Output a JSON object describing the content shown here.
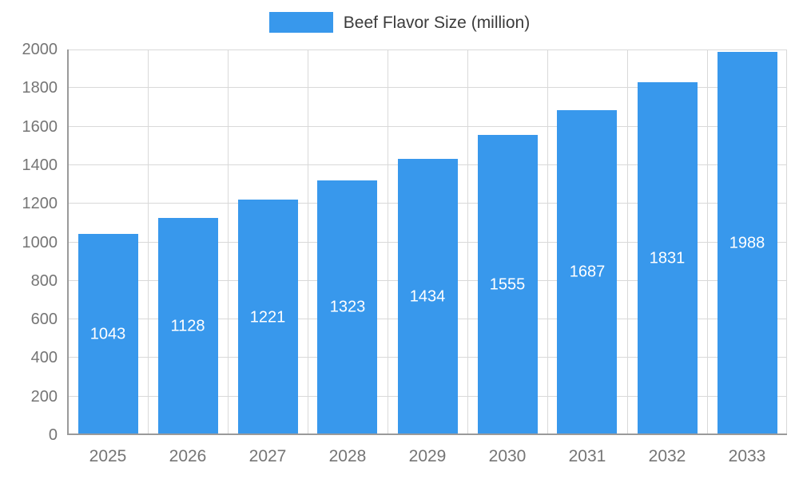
{
  "chart_data": {
    "type": "bar",
    "title": "Beef Flavor Size (million)",
    "categories": [
      "2025",
      "2026",
      "2027",
      "2028",
      "2029",
      "2030",
      "2031",
      "2032",
      "2033"
    ],
    "values": [
      1043,
      1128,
      1221,
      1323,
      1434,
      1555,
      1687,
      1831,
      1988
    ],
    "xlabel": "",
    "ylabel": "",
    "ylim": [
      0,
      2000
    ],
    "yticks": [
      0,
      200,
      400,
      600,
      800,
      1000,
      1200,
      1400,
      1600,
      1800,
      2000
    ],
    "grid": "both",
    "legend_position": "top-center",
    "value_labels_shown": true,
    "bar_color": "#3898ec",
    "value_label_color": "#ffffff"
  },
  "style": {
    "background": "#ffffff",
    "grid_color": "#d9d9d9",
    "axis_color": "#9a9a9a",
    "tick_label_color": "#757575",
    "legend_text_color": "#3b3b3b"
  }
}
